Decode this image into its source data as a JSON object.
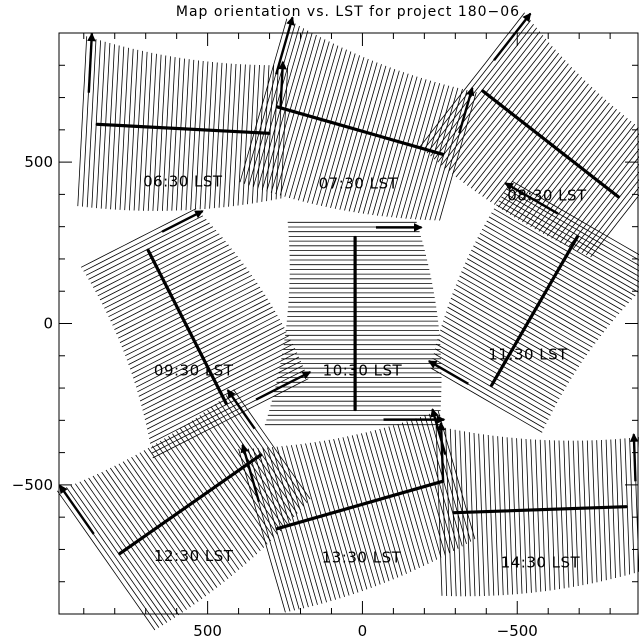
{
  "chart_data": {
    "type": "scatter",
    "title": "Map orientation vs. LST for project 180−06",
    "xlabel": "",
    "ylabel": "",
    "xlim": [
      980,
      -890
    ],
    "ylim": [
      -900,
      900
    ],
    "x_axis_reversed": true,
    "x_ticks": [
      500,
      0,
      -500
    ],
    "x_tick_labels": [
      "500",
      "0",
      "−500"
    ],
    "y_ticks": [
      500,
      0,
      -500
    ],
    "y_tick_labels": [
      "500",
      "0",
      "−500"
    ],
    "grid": false,
    "color": "#000000",
    "series": [
      {
        "label": "06:30 LST",
        "center": [
          580,
          585
        ],
        "angle_deg": -3,
        "half_len": 320,
        "half_wid": 240,
        "curv": -0.12,
        "n_lines": 44
      },
      {
        "label": "07:30 LST",
        "center": [
          13,
          580
        ],
        "angle_deg": -16,
        "half_len": 320,
        "half_wid": 240,
        "curv": -0.12,
        "n_lines": 44
      },
      {
        "label": "08:30 LST",
        "center": [
          -596,
          542
        ],
        "angle_deg": -38,
        "half_len": 320,
        "half_wid": 240,
        "curv": -0.12,
        "n_lines": 44
      },
      {
        "label": "09:30 LST",
        "center": [
          545,
          0
        ],
        "angle_deg": -63,
        "half_len": 320,
        "half_wid": 240,
        "curv": 0.15,
        "n_lines": 44
      },
      {
        "label": "10:30 LST",
        "center": [
          0,
          0
        ],
        "angle_deg": -90,
        "half_len": 320,
        "half_wid": 240,
        "curv": 0.15,
        "n_lines": 44
      },
      {
        "label": "11:30 LST",
        "center": [
          -535,
          50
        ],
        "angle_deg": 60,
        "half_len": 320,
        "half_wid": 240,
        "curv": 0.15,
        "n_lines": 44
      },
      {
        "label": "12:30 LST",
        "center": [
          545,
          -575
        ],
        "angle_deg": 35,
        "half_len": 320,
        "half_wid": 240,
        "curv": -0.12,
        "n_lines": 44
      },
      {
        "label": "13:30 LST",
        "center": [
          3,
          -580
        ],
        "angle_deg": 16,
        "half_len": 320,
        "half_wid": 240,
        "curv": -0.12,
        "n_lines": 44
      },
      {
        "label": "14:30 LST",
        "center": [
          -575,
          -595
        ],
        "angle_deg": 2,
        "half_len": 320,
        "half_wid": 240,
        "curv": -0.12,
        "n_lines": 44
      }
    ]
  }
}
